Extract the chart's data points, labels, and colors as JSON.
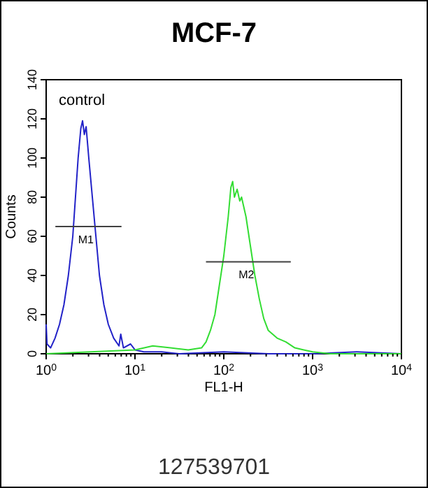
{
  "chart_data": {
    "type": "line",
    "title": "MCF-7",
    "xlabel": "FL1-H",
    "ylabel": "Counts",
    "log": "x",
    "grid": false,
    "xlim": [
      1,
      10000
    ],
    "ylim": [
      0,
      140
    ],
    "xticks": [
      {
        "value": 1,
        "label": "10$^{0}$"
      },
      {
        "value": 2,
        "label": null
      },
      {
        "value": 3,
        "label": null
      },
      {
        "value": 4,
        "label": null
      },
      {
        "value": 5,
        "label": null
      },
      {
        "value": 6,
        "label": null
      },
      {
        "value": 7,
        "label": null
      },
      {
        "value": 8,
        "label": null
      },
      {
        "value": 9,
        "label": null
      },
      {
        "value": 10,
        "label": "10$^{1}$"
      },
      {
        "value": 20,
        "label": null
      },
      {
        "value": 30,
        "label": null
      },
      {
        "value": 40,
        "label": null
      },
      {
        "value": 50,
        "label": null
      },
      {
        "value": 60,
        "label": null
      },
      {
        "value": 70,
        "label": null
      },
      {
        "value": 80,
        "label": null
      },
      {
        "value": 90,
        "label": null
      },
      {
        "value": 100,
        "label": "10$^{2}$"
      },
      {
        "value": 200,
        "label": null
      },
      {
        "value": 300,
        "label": null
      },
      {
        "value": 400,
        "label": null
      },
      {
        "value": 500,
        "label": null
      },
      {
        "value": 600,
        "label": null
      },
      {
        "value": 700,
        "label": null
      },
      {
        "value": 800,
        "label": null
      },
      {
        "value": 900,
        "label": null
      },
      {
        "value": 1000,
        "label": "10$^{3}$"
      },
      {
        "value": 2000,
        "label": null
      },
      {
        "value": 3000,
        "label": null
      },
      {
        "value": 4000,
        "label": null
      },
      {
        "value": 5000,
        "label": null
      },
      {
        "value": 6000,
        "label": null
      },
      {
        "value": 7000,
        "label": null
      },
      {
        "value": 8000,
        "label": null
      },
      {
        "value": 9000,
        "label": null
      },
      {
        "value": 10000,
        "label": "10$^{4}$"
      }
    ],
    "yticks": [
      0,
      20,
      40,
      60,
      80,
      100,
      120,
      140
    ],
    "series": [
      {
        "color": "#2222c8",
        "x": [
          1,
          1.023,
          1.122,
          1.259,
          1.413,
          1.585,
          1.778,
          1.995,
          2.138,
          2.291,
          2.455,
          2.57,
          2.692,
          2.818,
          3.02,
          3.311,
          3.631,
          3.981,
          4.467,
          5.012,
          5.754,
          6.607,
          6.918,
          7.413,
          8.913,
          10,
          12.59,
          19.95,
          31.62,
          100,
          316.2,
          1000,
          3162,
          10000
        ],
        "values": [
          15,
          5,
          3,
          8,
          15,
          25,
          40,
          60,
          80,
          100,
          115,
          119,
          112,
          116,
          100,
          80,
          60,
          40,
          25,
          15,
          8,
          4,
          10,
          3,
          5,
          2,
          1,
          1,
          0,
          1,
          0,
          0,
          1,
          0
        ]
      },
      {
        "color": "#33dd33",
        "x": [
          1,
          3.162,
          10,
          15.85,
          25.12,
          39.81,
          56.23,
          63.1,
          70.79,
          79.43,
          89.13,
          100,
          112.2,
          120.2,
          125.9,
          131.8,
          141.3,
          151.4,
          158.5,
          177.8,
          199.5,
          223.9,
          251.2,
          281.8,
          316.2,
          354.8,
          398.1,
          501.2,
          631,
          794.3,
          1000,
          1585,
          3162,
          10000
        ],
        "values": [
          0,
          1,
          2,
          4,
          3,
          2,
          3,
          6,
          12,
          20,
          35,
          50,
          70,
          85,
          88,
          80,
          84,
          78,
          80,
          70,
          55,
          40,
          28,
          18,
          12,
          10,
          8,
          6,
          3,
          2,
          1,
          0,
          0,
          0
        ]
      },
      {
        "color": "#404040",
        "x": [
          1.27,
          7.05
        ],
        "values": [
          65,
          65
        ]
      },
      {
        "color": "#404040",
        "x": [
          63,
          568
        ],
        "values": [
          47,
          47
        ]
      }
    ],
    "annotations": [
      "control",
      {
        "text": "M1",
        "x": 2.8,
        "y": 65
      },
      {
        "text": "M2",
        "x": 180,
        "y": 47
      },
      "127539701"
    ]
  }
}
